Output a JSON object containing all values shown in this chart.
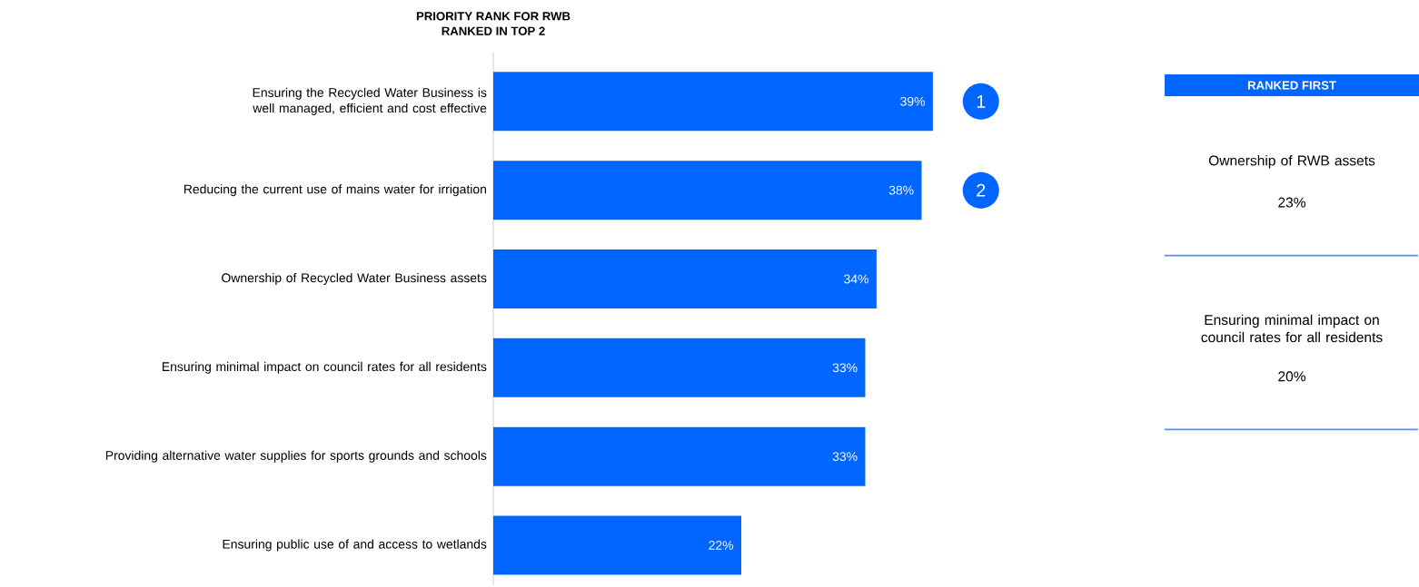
{
  "chart_data": [
    {
      "type": "bar",
      "orientation": "horizontal",
      "title": "PRIORITY RANK FOR RWB",
      "subtitle": "RANKED IN TOP 2",
      "categories": [
        "Ensuring the Recycled Water Business is well managed, efficient and cost effective",
        "Reducing the current use of mains water for irrigation",
        "Ownership of Recycled Water Business assets",
        "Ensuring minimal impact on council rates for all residents",
        "Providing alternative water supplies for sports grounds and schools",
        "Ensuring public use of and access to wetlands"
      ],
      "values": [
        39,
        38,
        34,
        33,
        33,
        22
      ],
      "value_labels": [
        "39%",
        "38%",
        "34%",
        "33%",
        "33%",
        "22%"
      ],
      "color": "#0066ff",
      "tick_labels": "y",
      "annotations": [
        "1",
        "2"
      ]
    },
    {
      "type": "other",
      "title": "RANKED FIRST",
      "color": "#0066ff",
      "annotations": [
        "Ownership of RWB assets",
        "23%",
        "Ensuring minimal impact on council rates for all residents",
        "20%"
      ]
    }
  ]
}
